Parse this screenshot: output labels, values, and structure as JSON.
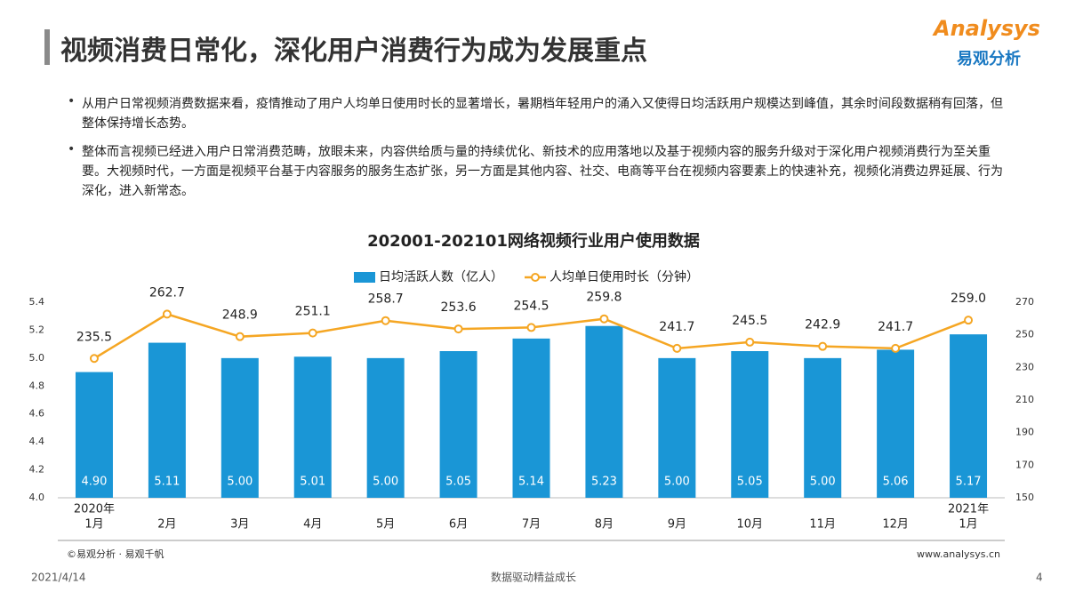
{
  "header": {
    "title": "视频消费日常化，深化用户消费行为成为发展重点",
    "logo_brand": "Analysys",
    "logo_cn": "易观分析"
  },
  "bullets": [
    "从用户日常视频消费数据来看，疫情推动了用户人均单日使用时长的显著增长，暑期档年轻用户的涌入又使得日均活跃用户规模达到峰值，其余时间段数据稍有回落，但整体保持增长态势。",
    "整体而言视频已经进入用户日常消费范畴，放眼未来，内容供给质与量的持续优化、新技术的应用落地以及基于视频内容的服务升级对于深化用户视频消费行为至关重要。大视频时代，一方面是视频平台基于内容服务的服务生态扩张，另一方面是其他内容、社交、电商等平台在视频内容要素上的快速补充，视频化消费边界延展、行为深化，进入新常态。"
  ],
  "chart_data": {
    "type": "bar-line",
    "title": "202001-202101网络视频行业用户使用数据",
    "categories": [
      "1月",
      "2月",
      "3月",
      "4月",
      "5月",
      "6月",
      "7月",
      "8月",
      "9月",
      "10月",
      "11月",
      "12月",
      "1月"
    ],
    "category_years": [
      "2020年",
      null,
      null,
      null,
      null,
      null,
      null,
      null,
      null,
      null,
      null,
      null,
      "2021年"
    ],
    "series": [
      {
        "name": "日均活跃人数（亿人）",
        "color": "#1a96d6",
        "type": "bar",
        "values": [
          4.9,
          5.11,
          5.0,
          5.01,
          5.0,
          5.05,
          5.14,
          5.23,
          5.0,
          5.05,
          5.0,
          5.06,
          5.17
        ],
        "value_labels": [
          "4.90",
          "5.11",
          "5.00",
          "5.01",
          "5.00",
          "5.05",
          "5.14",
          "5.23",
          "5.00",
          "5.05",
          "5.00",
          "5.06",
          "5.17"
        ]
      },
      {
        "name": "人均单日使用时长（分钟）",
        "color": "#f5a623",
        "type": "line",
        "axis": "y2",
        "values": [
          235.5,
          262.7,
          248.9,
          251.1,
          258.7,
          253.6,
          254.5,
          259.8,
          241.7,
          245.5,
          242.9,
          241.7,
          259.0
        ],
        "value_labels": [
          "235.5",
          "262.7",
          "248.9",
          "251.1",
          "258.7",
          "253.6",
          "254.5",
          "259.8",
          "241.7",
          "245.5",
          "242.9",
          "241.7",
          "259.0"
        ]
      }
    ],
    "ylim": [
      4.0,
      5.4
    ],
    "yticks": [
      {
        "value": 4.0,
        "label": "4.0"
      },
      4.2,
      4.4,
      4.6,
      4.8,
      {
        "value": 5.0,
        "label": "5.0"
      },
      5.2,
      5.4
    ],
    "y2lim": [
      150,
      270
    ],
    "y2ticks": [
      150,
      170,
      190,
      210,
      230,
      250,
      270
    ],
    "grid": false,
    "legend": "top"
  },
  "footer": {
    "source": "©易观分析 · 易观千帆",
    "url": "www.analysys.cn",
    "date": "2021/4/14",
    "slogan": "数据驱动精益成长",
    "page": "4"
  }
}
